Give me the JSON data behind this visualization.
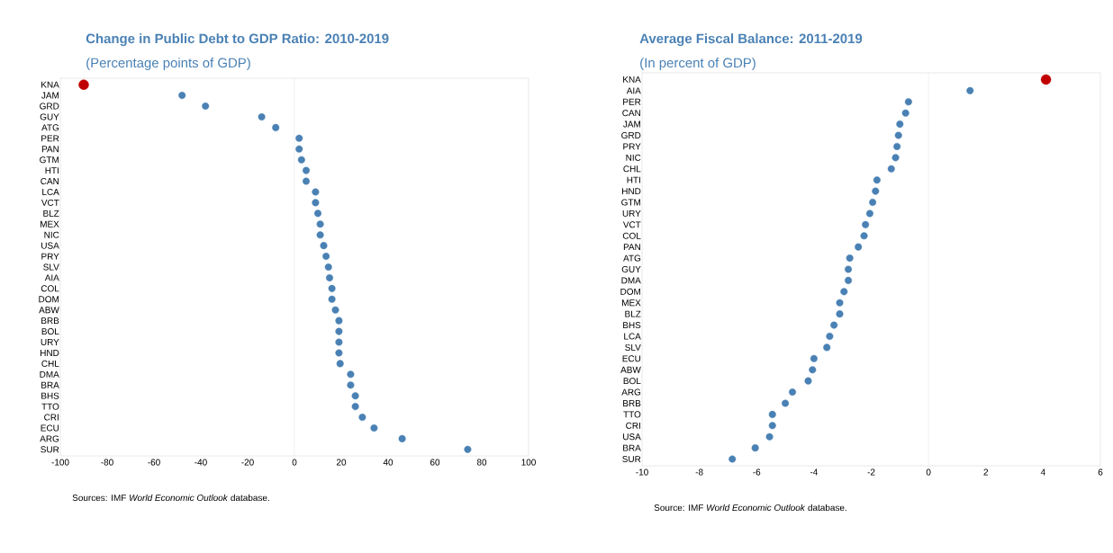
{
  "chart_data": [
    {
      "type": "scatter",
      "orientation": "horizontal",
      "title": "Change in Public Debt to GDP Ratio: 2010-2019",
      "subtitle": "(Percentage points of GDP)",
      "categories": [
        "KNA",
        "JAM",
        "GRD",
        "GUY",
        "ATG",
        "PER",
        "PAN",
        "GTM",
        "HTI",
        "CAN",
        "LCA",
        "VCT",
        "BLZ",
        "MEX",
        "NIC",
        "USA",
        "PRY",
        "SLV",
        "AIA",
        "COL",
        "DOM",
        "ABW",
        "BRB",
        "BOL",
        "URY",
        "HND",
        "CHL",
        "DMA",
        "BRA",
        "BHS",
        "TTO",
        "CRI",
        "ECU",
        "ARG",
        "SUR"
      ],
      "values": [
        -90,
        -48,
        -38,
        -14,
        -8,
        2,
        2,
        3,
        5,
        5,
        9,
        9,
        10,
        11,
        11,
        12.5,
        13.5,
        14.5,
        15,
        16,
        16,
        17.5,
        19,
        19,
        19,
        19,
        19.5,
        24,
        24,
        26,
        26,
        29,
        34,
        46,
        74
      ],
      "colors": [
        "#c00000",
        "#4a81b4",
        "#4a81b4",
        "#4a81b4",
        "#4a81b4",
        "#4a81b4",
        "#4a81b4",
        "#4a81b4",
        "#4a81b4",
        "#4a81b4",
        "#4a81b4",
        "#4a81b4",
        "#4a81b4",
        "#4a81b4",
        "#4a81b4",
        "#4a81b4",
        "#4a81b4",
        "#4a81b4",
        "#4a81b4",
        "#4a81b4",
        "#4a81b4",
        "#4a81b4",
        "#4a81b4",
        "#4a81b4",
        "#4a81b4",
        "#4a81b4",
        "#4a81b4",
        "#4a81b4",
        "#4a81b4",
        "#4a81b4",
        "#4a81b4",
        "#4a81b4",
        "#4a81b4",
        "#4a81b4",
        "#4a81b4"
      ],
      "xlim": [
        -100,
        100
      ],
      "xticks": [
        -100,
        -80,
        -60,
        -40,
        -20,
        0,
        20,
        40,
        60,
        80,
        100
      ],
      "marker": "circle",
      "grid": false,
      "ref_lines": [
        {
          "axis": "x",
          "value": 0,
          "color": "#d9d9d9"
        }
      ],
      "annotations": [
        "Sources: IMF *World Economic Outlook* database."
      ]
    },
    {
      "type": "scatter",
      "orientation": "horizontal",
      "title": "Average Fiscal Balance: 2011-2019",
      "subtitle": "(In percent of GDP)",
      "categories": [
        "KNA",
        "AIA",
        "PER",
        "CAN",
        "JAM",
        "GRD",
        "PRY",
        "NIC",
        "CHL",
        "HTI",
        "HND",
        "GTM",
        "URY",
        "VCT",
        "COL",
        "PAN",
        "ATG",
        "GUY",
        "DMA",
        "DOM",
        "MEX",
        "BLZ",
        "BHS",
        "LCA",
        "SLV",
        "ECU",
        "ABW",
        "BOL",
        "ARG",
        "BRB",
        "TTO",
        "CRI",
        "USA",
        "BRA",
        "SUR"
      ],
      "values": [
        4.1,
        1.45,
        -0.7,
        -0.8,
        -1.0,
        -1.05,
        -1.1,
        -1.15,
        -1.3,
        -1.8,
        -1.85,
        -1.95,
        -2.05,
        -2.2,
        -2.25,
        -2.45,
        -2.75,
        -2.8,
        -2.8,
        -2.95,
        -3.1,
        -3.1,
        -3.3,
        -3.45,
        -3.55,
        -4.0,
        -4.05,
        -4.2,
        -4.75,
        -5.0,
        -5.45,
        -5.45,
        -5.55,
        -6.05,
        -6.85
      ],
      "colors": [
        "#c00000",
        "#4a81b4",
        "#4a81b4",
        "#4a81b4",
        "#4a81b4",
        "#4a81b4",
        "#4a81b4",
        "#4a81b4",
        "#4a81b4",
        "#4a81b4",
        "#4a81b4",
        "#4a81b4",
        "#4a81b4",
        "#4a81b4",
        "#4a81b4",
        "#4a81b4",
        "#4a81b4",
        "#4a81b4",
        "#4a81b4",
        "#4a81b4",
        "#4a81b4",
        "#4a81b4",
        "#4a81b4",
        "#4a81b4",
        "#4a81b4",
        "#4a81b4",
        "#4a81b4",
        "#4a81b4",
        "#4a81b4",
        "#4a81b4",
        "#4a81b4",
        "#4a81b4",
        "#4a81b4",
        "#4a81b4",
        "#4a81b4"
      ],
      "xlim": [
        -10,
        6
      ],
      "xticks": [
        -10,
        -8,
        -6,
        -4,
        -2,
        0,
        2,
        4,
        6
      ],
      "marker": "circle",
      "grid": false,
      "ref_lines": [
        {
          "axis": "x",
          "value": 0,
          "color": "#d9d9d9"
        }
      ],
      "annotations": [
        "Source: IMF *World Economic Outlook* database."
      ]
    }
  ]
}
